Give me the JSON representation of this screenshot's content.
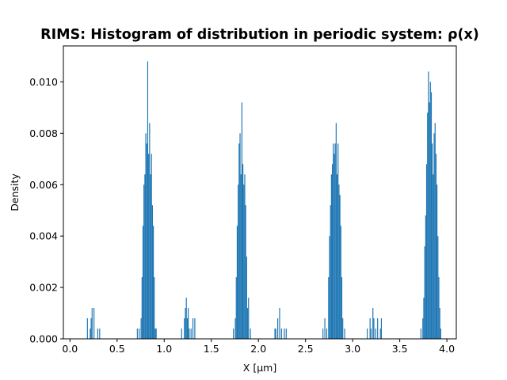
{
  "chart_data": {
    "type": "bar",
    "title": "RIMS: Histogram of distribution in periodic system: ρ(x)",
    "xlabel": "X [μm]",
    "ylabel": "Density",
    "xlim": [
      -0.07,
      4.1
    ],
    "ylim": [
      0,
      0.0114
    ],
    "bar_color": "#1f77b4",
    "xticks": [
      {
        "value": 0.0,
        "label": "0.0"
      },
      {
        "value": 0.5,
        "label": "0.5"
      },
      {
        "value": 1.0,
        "label": "1.0"
      },
      {
        "value": 1.5,
        "label": "1.5"
      },
      {
        "value": 2.0,
        "label": "2.0"
      },
      {
        "value": 2.5,
        "label": "2.5"
      },
      {
        "value": 3.0,
        "label": "3.0"
      },
      {
        "value": 3.5,
        "label": "3.5"
      },
      {
        "value": 4.0,
        "label": "4.0"
      }
    ],
    "yticks": [
      {
        "value": 0.0,
        "label": "0.000"
      },
      {
        "value": 0.002,
        "label": "0.002"
      },
      {
        "value": 0.004,
        "label": "0.004"
      },
      {
        "value": 0.006,
        "label": "0.006"
      },
      {
        "value": 0.008,
        "label": "0.008"
      },
      {
        "value": 0.01,
        "label": "0.010"
      }
    ],
    "bin_width": 0.01,
    "bins": [
      [
        0.18,
        0.0008
      ],
      [
        0.21,
        0.0004
      ],
      [
        0.22,
        0.0008
      ],
      [
        0.23,
        0.0012
      ],
      [
        0.25,
        0.0012
      ],
      [
        0.29,
        0.0004
      ],
      [
        0.31,
        0.0004
      ],
      [
        0.71,
        0.0004
      ],
      [
        0.73,
        0.0004
      ],
      [
        0.75,
        0.0008
      ],
      [
        0.76,
        0.0024
      ],
      [
        0.77,
        0.0044
      ],
      [
        0.78,
        0.006
      ],
      [
        0.79,
        0.0064
      ],
      [
        0.8,
        0.008
      ],
      [
        0.81,
        0.0076
      ],
      [
        0.82,
        0.0108
      ],
      [
        0.83,
        0.0072
      ],
      [
        0.84,
        0.0084
      ],
      [
        0.85,
        0.0064
      ],
      [
        0.86,
        0.0072
      ],
      [
        0.87,
        0.0052
      ],
      [
        0.88,
        0.0044
      ],
      [
        0.89,
        0.0024
      ],
      [
        0.9,
        0.0004
      ],
      [
        0.91,
        0.0004
      ],
      [
        1.18,
        0.0004
      ],
      [
        1.21,
        0.0008
      ],
      [
        1.22,
        0.0012
      ],
      [
        1.23,
        0.0016
      ],
      [
        1.24,
        0.0008
      ],
      [
        1.25,
        0.0012
      ],
      [
        1.26,
        0.0004
      ],
      [
        1.28,
        0.0004
      ],
      [
        1.3,
        0.0008
      ],
      [
        1.32,
        0.0008
      ],
      [
        1.73,
        0.0004
      ],
      [
        1.75,
        0.0008
      ],
      [
        1.76,
        0.0024
      ],
      [
        1.77,
        0.0044
      ],
      [
        1.78,
        0.006
      ],
      [
        1.79,
        0.0076
      ],
      [
        1.8,
        0.008
      ],
      [
        1.81,
        0.0064
      ],
      [
        1.82,
        0.0092
      ],
      [
        1.83,
        0.0068
      ],
      [
        1.84,
        0.006
      ],
      [
        1.85,
        0.0064
      ],
      [
        1.86,
        0.0052
      ],
      [
        1.87,
        0.0032
      ],
      [
        1.88,
        0.0012
      ],
      [
        1.89,
        0.0016
      ],
      [
        1.91,
        0.0004
      ],
      [
        2.17,
        0.0004
      ],
      [
        2.18,
        0.0004
      ],
      [
        2.2,
        0.0008
      ],
      [
        2.22,
        0.0012
      ],
      [
        2.24,
        0.0004
      ],
      [
        2.27,
        0.0004
      ],
      [
        2.29,
        0.0004
      ],
      [
        2.68,
        0.0004
      ],
      [
        2.7,
        0.0008
      ],
      [
        2.72,
        0.0004
      ],
      [
        2.74,
        0.0024
      ],
      [
        2.75,
        0.004
      ],
      [
        2.76,
        0.0052
      ],
      [
        2.77,
        0.0064
      ],
      [
        2.78,
        0.0068
      ],
      [
        2.79,
        0.0076
      ],
      [
        2.8,
        0.0072
      ],
      [
        2.81,
        0.0076
      ],
      [
        2.82,
        0.0084
      ],
      [
        2.83,
        0.0064
      ],
      [
        2.84,
        0.0076
      ],
      [
        2.85,
        0.006
      ],
      [
        2.86,
        0.0056
      ],
      [
        2.87,
        0.0044
      ],
      [
        2.88,
        0.0024
      ],
      [
        2.89,
        0.0008
      ],
      [
        2.91,
        0.0004
      ],
      [
        3.15,
        0.0004
      ],
      [
        3.18,
        0.0008
      ],
      [
        3.19,
        0.0004
      ],
      [
        3.21,
        0.0012
      ],
      [
        3.22,
        0.0008
      ],
      [
        3.24,
        0.0004
      ],
      [
        3.26,
        0.0008
      ],
      [
        3.29,
        0.0004
      ],
      [
        3.3,
        0.0008
      ],
      [
        3.72,
        0.0004
      ],
      [
        3.74,
        0.0008
      ],
      [
        3.75,
        0.0016
      ],
      [
        3.76,
        0.0036
      ],
      [
        3.77,
        0.0048
      ],
      [
        3.78,
        0.0068
      ],
      [
        3.79,
        0.0088
      ],
      [
        3.8,
        0.0104
      ],
      [
        3.81,
        0.0092
      ],
      [
        3.82,
        0.01
      ],
      [
        3.83,
        0.0096
      ],
      [
        3.84,
        0.0076
      ],
      [
        3.85,
        0.0064
      ],
      [
        3.86,
        0.008
      ],
      [
        3.87,
        0.0084
      ],
      [
        3.88,
        0.0072
      ],
      [
        3.89,
        0.006
      ],
      [
        3.9,
        0.004
      ],
      [
        3.91,
        0.0024
      ],
      [
        3.92,
        0.0012
      ],
      [
        3.93,
        0.0004
      ]
    ]
  }
}
